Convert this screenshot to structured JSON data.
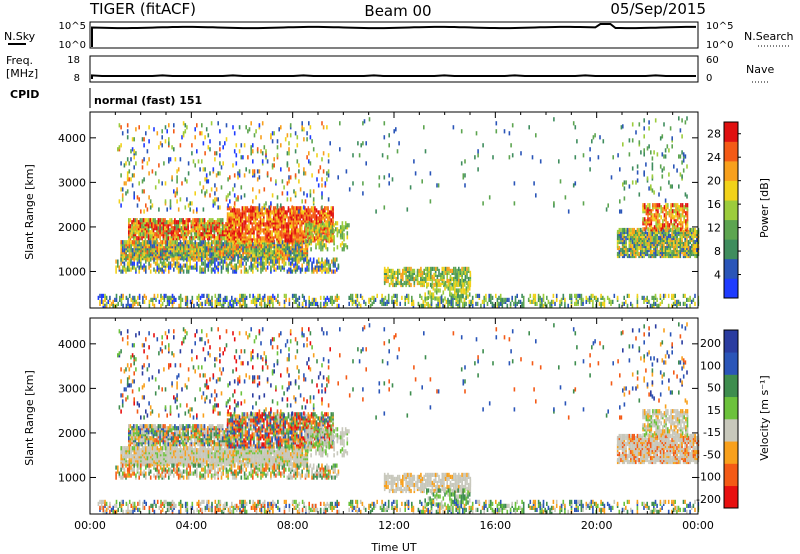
{
  "header": {
    "radar": "TIGER (fitACF)",
    "beam": "Beam 00",
    "date": "05/Sep/2015"
  },
  "panels": {
    "nsky": {
      "label": "N.Sky",
      "ticks": [
        "10^5",
        "10^0"
      ],
      "right_label": "N.Search",
      "right_ticks": [
        "10^5",
        "10^0"
      ]
    },
    "freq": {
      "label_line1": "Freq.",
      "label_line2": "[MHz]",
      "ticks": [
        "18",
        "8"
      ],
      "right_label": "Nave",
      "right_ticks": [
        "60",
        "0"
      ]
    },
    "cpid": {
      "label": "CPID",
      "mode": "normal (fast) 151"
    }
  },
  "colors": {
    "power": [
      "#1f3cff",
      "#2a55b8",
      "#3f8d5e",
      "#5da550",
      "#9ccc3c",
      "#f2d21a",
      "#f8a01c",
      "#f45a16",
      "#e01010"
    ],
    "velocity": [
      "#e81010",
      "#f45a16",
      "#f8a01c",
      "#c8c8bc",
      "#6cc23c",
      "#3e8d4e",
      "#2a55b8",
      "#2a3ca0"
    ]
  },
  "chart_data": [
    {
      "type": "heatmap",
      "name": "power",
      "ylabel": "Slant Range [km]",
      "y_ticks": [
        1000,
        2000,
        3000,
        4000
      ],
      "ylim": [
        180,
        4580
      ],
      "x_ticks": [
        "00:00",
        "04:00",
        "08:00",
        "12:00",
        "16:00",
        "20:00",
        "00:00"
      ],
      "xlim_hours": [
        0,
        24
      ],
      "colorbar_label": "Power [dB]",
      "colorbar_ticks": [
        "4",
        "8",
        "12",
        "16",
        "20",
        "24",
        "28"
      ],
      "colorbar_range": [
        0,
        30
      ]
    },
    {
      "type": "heatmap",
      "name": "velocity",
      "ylabel": "Slant Range [km]",
      "y_ticks": [
        1000,
        2000,
        3000,
        4000
      ],
      "ylim": [
        180,
        4580
      ],
      "x_ticks": [
        "00:00",
        "04:00",
        "08:00",
        "12:00",
        "16:00",
        "20:00",
        "00:00"
      ],
      "xlim_hours": [
        0,
        24
      ],
      "xlabel": "Time UT",
      "colorbar_label": "Velocity [m s^-1]",
      "colorbar_ticks": [
        "200",
        "100",
        "50",
        "15",
        "-15",
        "-50",
        "-100",
        "-200"
      ]
    }
  ]
}
